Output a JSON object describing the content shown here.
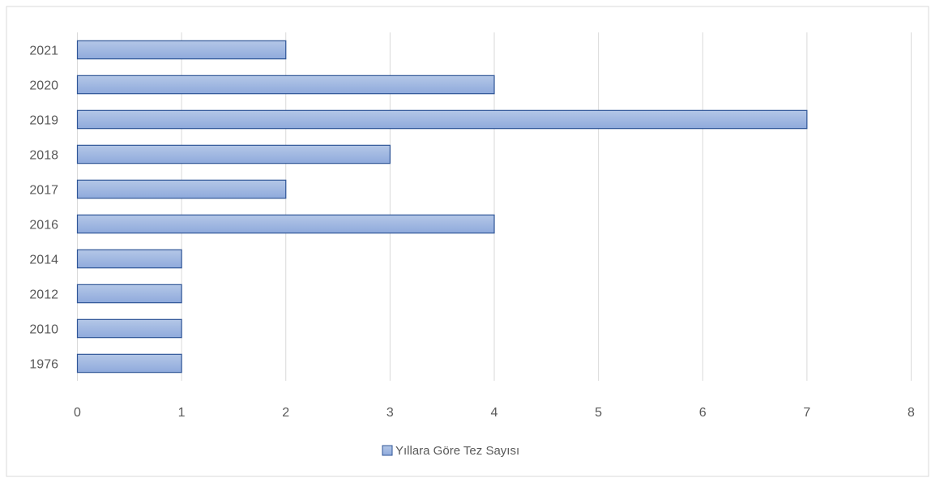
{
  "chart_data": {
    "type": "bar",
    "orientation": "horizontal",
    "categories": [
      "1976",
      "2010",
      "2012",
      "2014",
      "2016",
      "2017",
      "2018",
      "2019",
      "2020",
      "2021"
    ],
    "series": [
      {
        "name": "Yıllara Göre Tez Sayısı",
        "values": [
          1,
          1,
          1,
          1,
          4,
          2,
          3,
          7,
          4,
          2
        ]
      }
    ],
    "title": "",
    "xlabel": "",
    "ylabel": "",
    "xlim": [
      0,
      8
    ],
    "xticks": [
      "0",
      "1",
      "2",
      "3",
      "4",
      "5",
      "6",
      "7",
      "8"
    ],
    "grid": "vertical",
    "legend_position": "bottom",
    "colors": {
      "bar_fill_top": "#b4c7e7",
      "bar_fill_bottom": "#8faadc",
      "bar_stroke": "#2f5597",
      "gridline": "#d9d9d9",
      "frame": "#d9d9d9",
      "text": "#595959"
    }
  }
}
